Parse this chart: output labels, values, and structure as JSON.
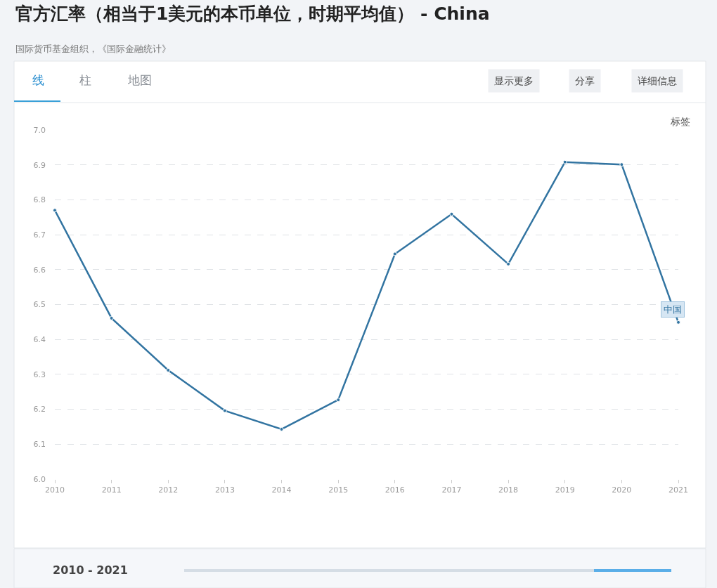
{
  "chart_data": {
    "type": "line",
    "title": "官方汇率（相当于1美元的本币单位，时期平均值） - China",
    "subtitle": "国际货币基金组织，《国际金融统计》",
    "x": [
      2010,
      2011,
      2012,
      2013,
      2014,
      2015,
      2016,
      2017,
      2018,
      2019,
      2020,
      2021
    ],
    "series": [
      {
        "name": "中国",
        "color": "#3274a1",
        "values": [
          6.77,
          6.461,
          6.312,
          6.196,
          6.143,
          6.227,
          6.645,
          6.759,
          6.616,
          6.908,
          6.901,
          6.449
        ]
      }
    ],
    "xlim": [
      2010,
      2021
    ],
    "xticks": [
      2010,
      2011,
      2012,
      2013,
      2014,
      2015,
      2016,
      2017,
      2018,
      2019,
      2020,
      2021
    ],
    "ylim": [
      6.0,
      7.0
    ],
    "yticks": [
      {
        "value": 6.0,
        "label": "6.0"
      },
      {
        "value": 6.1,
        "label": "6.1"
      },
      {
        "value": 6.2,
        "label": "6.2"
      },
      {
        "value": 6.3,
        "label": "6.3"
      },
      {
        "value": 6.4,
        "label": "6.4"
      },
      {
        "value": 6.5,
        "label": "6.5"
      },
      {
        "value": 6.6,
        "label": "6.6"
      },
      {
        "value": 6.7,
        "label": "6.7"
      },
      {
        "value": 6.8,
        "label": "6.8"
      },
      {
        "value": 6.9,
        "label": "6.9"
      },
      {
        "value": 7.0,
        "label": "7.0"
      }
    ],
    "grid": "y",
    "legend": false,
    "marker": "circle",
    "line_style": "solid",
    "annotations": [
      "线",
      "柱",
      "地图",
      "显示更多",
      "分享",
      "详细信息",
      "标签",
      "2010 - 2021"
    ]
  }
}
